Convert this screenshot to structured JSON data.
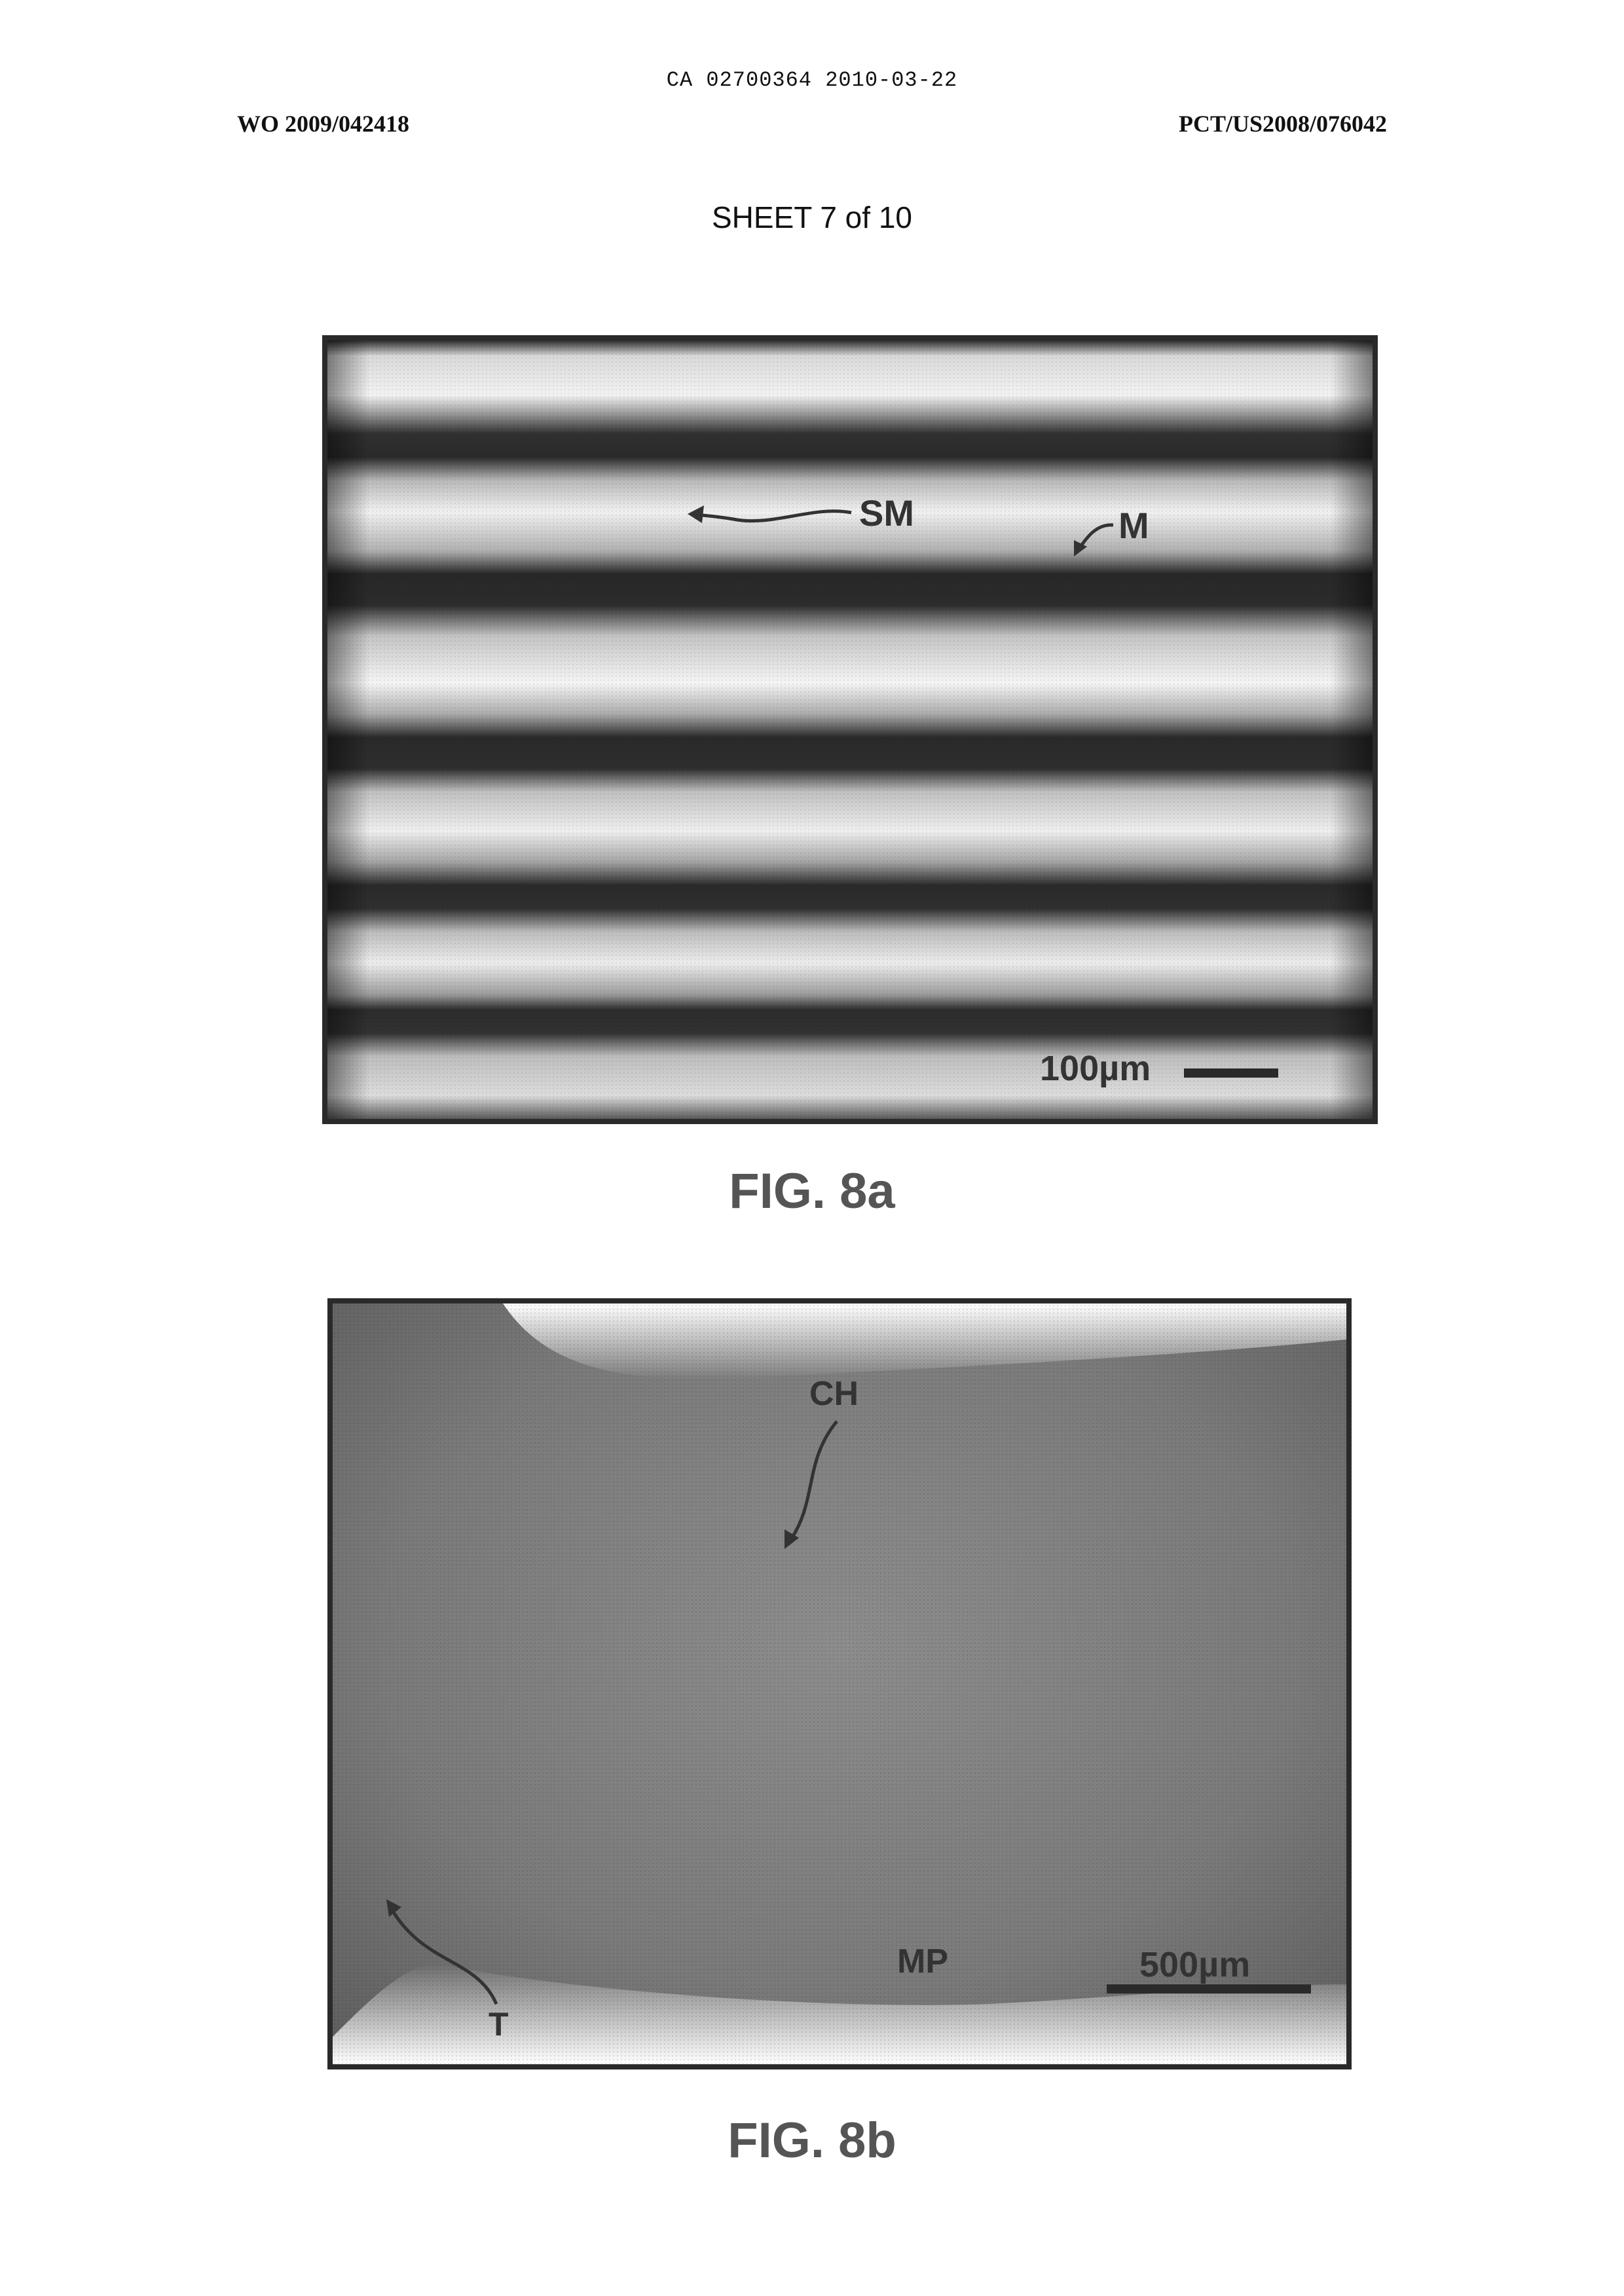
{
  "header": {
    "top_line": "CA 02700364 2010-03-22",
    "left": "WO 2009/042418",
    "right": "PCT/US2008/076042"
  },
  "sheet": "SHEET 7 of 10",
  "figures": [
    {
      "caption": "FIG. 8a",
      "labels": {
        "sm": "SM",
        "m": "M"
      },
      "scale_bar": "100µm"
    },
    {
      "caption": "FIG. 8b",
      "labels": {
        "ch": "CH",
        "t": "T",
        "mp": "MP"
      },
      "scale_bar": "500µm"
    }
  ]
}
